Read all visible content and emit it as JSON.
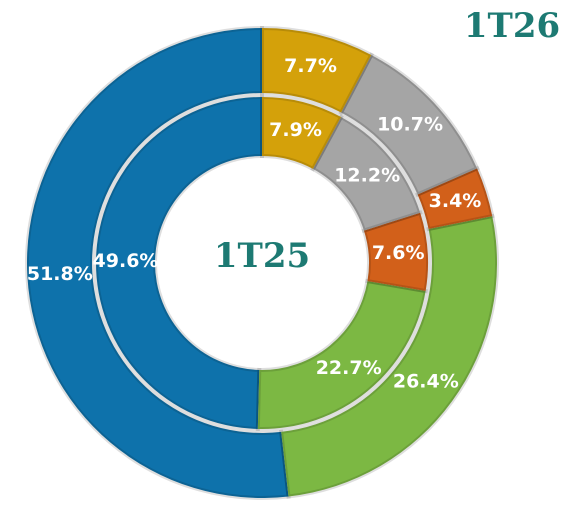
{
  "chart_data": {
    "type": "donut",
    "colors": [
      "#d4a10a",
      "#a5a5a5",
      "#d2601a",
      "#7cb843",
      "#0e72ab"
    ],
    "series": [
      {
        "name": "1T25",
        "values": [
          7.9,
          12.2,
          7.6,
          22.7,
          49.6
        ],
        "value_labels": [
          "7.9%",
          "12.2%",
          "7.6%",
          "22.7%",
          "49.6%"
        ]
      },
      {
        "name": "1T26",
        "values": [
          7.7,
          10.7,
          3.4,
          26.4,
          51.8
        ],
        "value_labels": [
          "7.7%",
          "10.7%",
          "3.4%",
          "26.4%",
          "51.8%"
        ]
      }
    ]
  }
}
